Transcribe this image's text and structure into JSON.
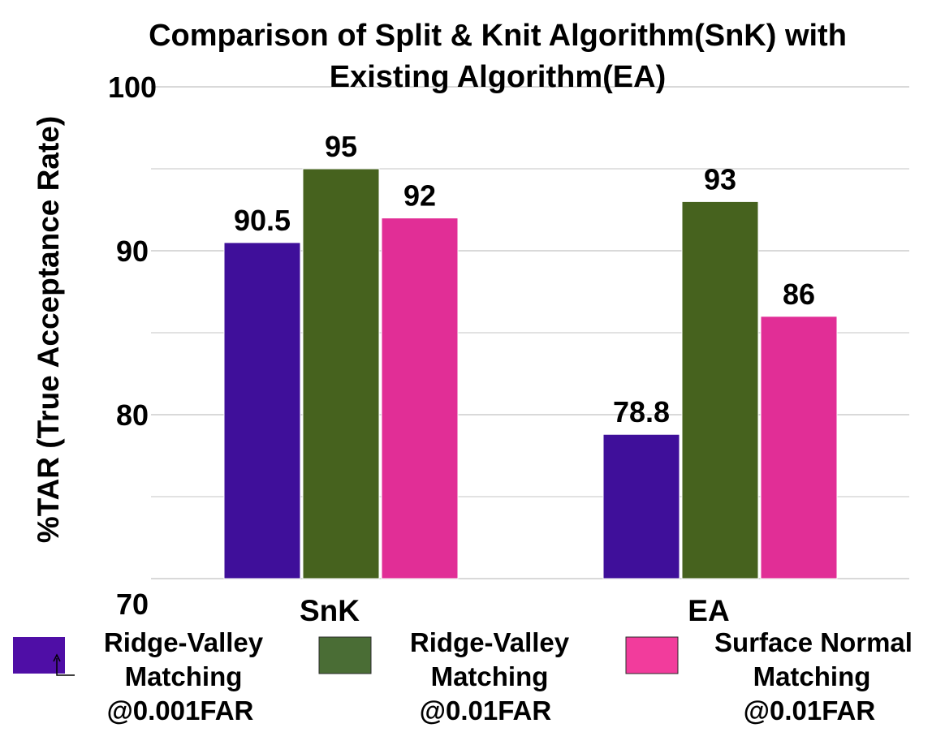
{
  "chart_data": {
    "type": "bar",
    "title": "Comparison of Split & Knit Algorithm(SnK) with Existing Algorithm(EA)",
    "title_lines": [
      "Comparison of Split & Knit Algorithm(SnK) with",
      "Existing Algorithm(EA)"
    ],
    "xlabel": "",
    "ylabel": "%TAR (True Acceptance Rate)",
    "categories": [
      "SnK",
      "EA"
    ],
    "ylim": [
      70,
      100
    ],
    "yticks": [
      "70",
      "80",
      "90",
      "100"
    ],
    "grid": true,
    "legend_position": "bottom",
    "series": [
      {
        "name": "Ridge-Valley Matching @0.001FAR",
        "legend_lines": [
          "Ridge-Valley",
          "Matching",
          "@0.001FAR"
        ],
        "values": [
          90.5,
          78.8
        ],
        "labels": [
          "90.5",
          "78.8"
        ],
        "color": "#3f0f9a",
        "legend_color": "#4f0ea6"
      },
      {
        "name": "Ridge-Valley Matching @0.01FAR",
        "legend_lines": [
          "Ridge-Valley",
          "Matching",
          "@0.01FAR"
        ],
        "values": [
          95,
          93
        ],
        "labels": [
          "95",
          "93"
        ],
        "color": "#46621e",
        "legend_color": "#4a6d35"
      },
      {
        "name": "Surface Normal Matching @0.01FAR",
        "legend_lines": [
          "Surface Normal",
          "Matching",
          "@0.01FAR"
        ],
        "values": [
          92,
          86
        ],
        "labels": [
          "92",
          "86"
        ],
        "color": "#e12e96",
        "legend_color": "#f23c9c"
      }
    ],
    "gridline_color": "#d9d9d9"
  }
}
